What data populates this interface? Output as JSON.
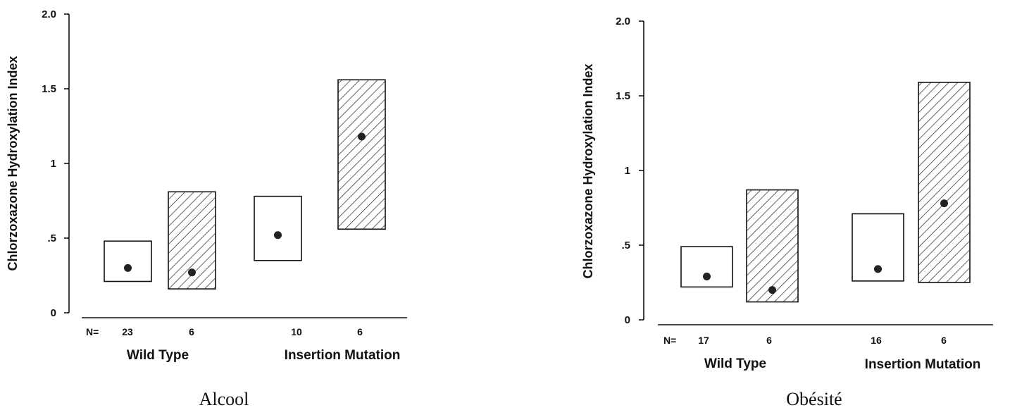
{
  "chart_data": [
    {
      "type": "box",
      "caption": "Alcool",
      "ylabel": "Chlorzoxazone Hydroxylation Index",
      "ylim": [
        0,
        2.0
      ],
      "yticks": [
        {
          "value": 0,
          "label": "0"
        },
        {
          "value": 0.5,
          "label": ".5"
        },
        {
          "value": 1,
          "label": "1"
        },
        {
          "value": 1.5,
          "label": "1.5"
        },
        {
          "value": 2.0,
          "label": "2.0"
        }
      ],
      "n_prefix": "N=",
      "groups": [
        "Wild Type",
        "Insertion Mutation"
      ],
      "boxes": [
        {
          "group": "Wild Type",
          "n": "23",
          "pattern": "open",
          "low": 0.21,
          "high": 0.48,
          "median": 0.3
        },
        {
          "group": "Wild Type",
          "n": "6",
          "pattern": "hatched",
          "low": 0.16,
          "high": 0.81,
          "median": 0.27
        },
        {
          "group": "Insertion Mutation",
          "n": "10",
          "pattern": "open",
          "low": 0.35,
          "high": 0.78,
          "median": 0.52
        },
        {
          "group": "Insertion Mutation",
          "n": "6",
          "pattern": "hatched",
          "low": 0.56,
          "high": 1.56,
          "median": 1.18
        }
      ]
    },
    {
      "type": "box",
      "caption": "Obésité",
      "ylabel": "Chlorzoxazone Hydroxylation Index",
      "ylim": [
        0,
        2.0
      ],
      "yticks": [
        {
          "value": 0,
          "label": "0"
        },
        {
          "value": 0.5,
          "label": ".5"
        },
        {
          "value": 1,
          "label": "1"
        },
        {
          "value": 1.5,
          "label": "1.5"
        },
        {
          "value": 2.0,
          "label": "2.0"
        }
      ],
      "n_prefix": "N=",
      "groups": [
        "Wild Type",
        "Insertion Mutation"
      ],
      "boxes": [
        {
          "group": "Wild Type",
          "n": "17",
          "pattern": "open",
          "low": 0.22,
          "high": 0.49,
          "median": 0.29
        },
        {
          "group": "Wild Type",
          "n": "6",
          "pattern": "hatched",
          "low": 0.12,
          "high": 0.87,
          "median": 0.2
        },
        {
          "group": "Insertion Mutation",
          "n": "16",
          "pattern": "open",
          "low": 0.26,
          "high": 0.71,
          "median": 0.34
        },
        {
          "group": "Insertion Mutation",
          "n": "6",
          "pattern": "hatched",
          "low": 0.25,
          "high": 1.59,
          "median": 0.78
        }
      ]
    }
  ]
}
